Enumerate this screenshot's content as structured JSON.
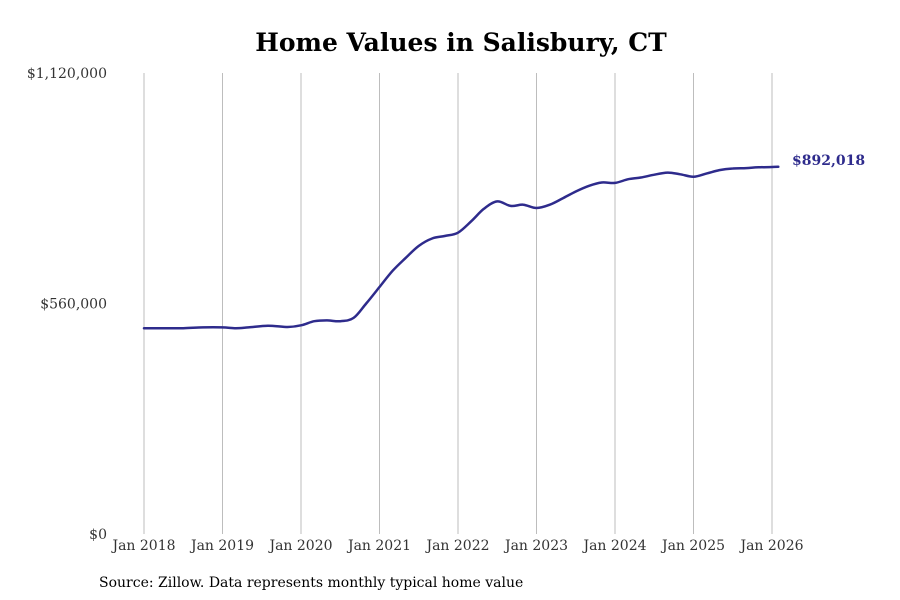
{
  "chart_data": {
    "type": "line",
    "title": "Home Values in Salisbury, CT",
    "xlabel": "",
    "ylabel": "",
    "ylim": [
      0,
      1120000
    ],
    "y_ticks": [
      {
        "value": 0,
        "label": "$0"
      },
      {
        "value": 560000,
        "label": "$560,000"
      },
      {
        "value": 1120000,
        "label": "$1,120,000"
      }
    ],
    "x_range": [
      2018.0,
      2026.0
    ],
    "x_ticks": [
      {
        "value": 2018,
        "label": "Jan 2018"
      },
      {
        "value": 2019,
        "label": "Jan 2019"
      },
      {
        "value": 2020,
        "label": "Jan 2020"
      },
      {
        "value": 2021,
        "label": "Jan 2021"
      },
      {
        "value": 2022,
        "label": "Jan 2022"
      },
      {
        "value": 2023,
        "label": "Jan 2023"
      },
      {
        "value": 2024,
        "label": "Jan 2024"
      },
      {
        "value": 2025,
        "label": "Jan 2025"
      },
      {
        "value": 2026,
        "label": "Jan 2026"
      }
    ],
    "grid": "vertical",
    "series": [
      {
        "name": "Typical home value",
        "color": "#2e2b8c",
        "x": [
          2018.0,
          2018.25,
          2018.5,
          2018.75,
          2019.0,
          2019.17,
          2019.33,
          2019.58,
          2019.83,
          2020.0,
          2020.17,
          2020.33,
          2020.5,
          2020.67,
          2020.83,
          2021.0,
          2021.17,
          2021.33,
          2021.5,
          2021.67,
          2021.83,
          2022.0,
          2022.17,
          2022.33,
          2022.5,
          2022.67,
          2022.83,
          2023.0,
          2023.17,
          2023.33,
          2023.5,
          2023.67,
          2023.83,
          2024.0,
          2024.17,
          2024.33,
          2024.5,
          2024.67,
          2024.83,
          2025.0,
          2025.17,
          2025.33,
          2025.5,
          2025.67,
          2025.83,
          2026.08
        ],
        "values": [
          500000,
          500000,
          500000,
          502000,
          502000,
          500000,
          502000,
          506000,
          503000,
          507000,
          517000,
          519000,
          517000,
          525000,
          560000,
          600000,
          640000,
          670000,
          700000,
          718000,
          724000,
          732000,
          760000,
          790000,
          808000,
          797000,
          800000,
          792000,
          800000,
          815000,
          832000,
          846000,
          854000,
          853000,
          862000,
          866000,
          873000,
          878000,
          874000,
          868000,
          876000,
          884000,
          888000,
          889000,
          891000,
          892018
        ]
      }
    ],
    "end_label": "$892,018"
  },
  "source": "Source: Zillow. Data represents monthly typical home value"
}
